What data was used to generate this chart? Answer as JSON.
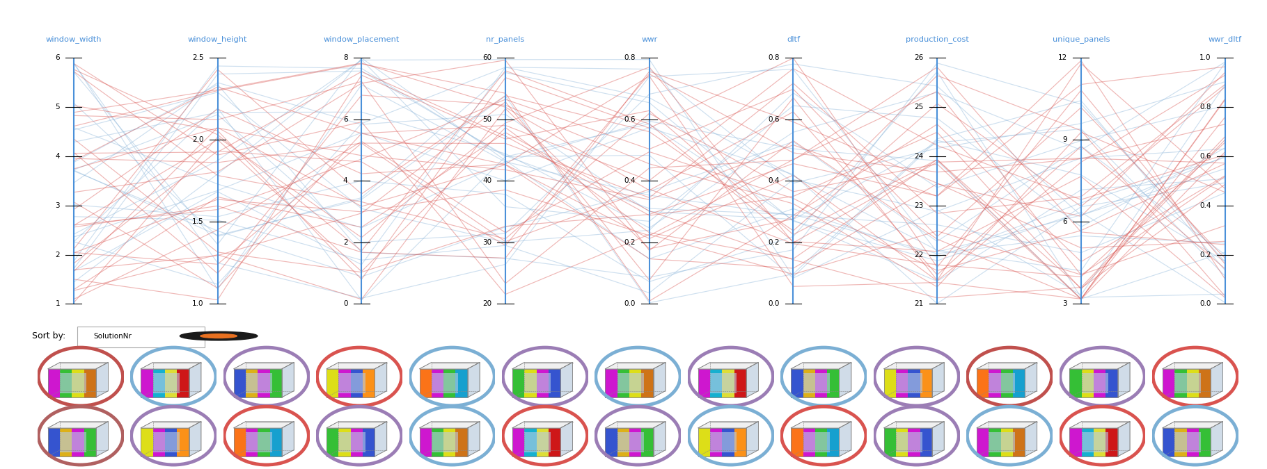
{
  "axes": [
    {
      "name": "window_width",
      "min": 1,
      "max": 6,
      "ticks": [
        1,
        2,
        3,
        4,
        5,
        6
      ]
    },
    {
      "name": "window_height",
      "min": 1.0,
      "max": 2.5,
      "ticks": [
        1.0,
        1.5,
        2.0,
        2.5
      ]
    },
    {
      "name": "window_placement",
      "min": 0,
      "max": 8,
      "ticks": [
        0,
        2,
        4,
        6,
        8
      ]
    },
    {
      "name": "nr_panels",
      "min": 20,
      "max": 60,
      "ticks": [
        20,
        30,
        40,
        50,
        60
      ]
    },
    {
      "name": "wwr",
      "min": 0.0,
      "max": 0.8,
      "ticks": [
        0.0,
        0.2,
        0.4,
        0.6,
        0.8
      ]
    },
    {
      "name": "dltf",
      "min": 0.0,
      "max": 0.8,
      "ticks": [
        0.0,
        0.2,
        0.4,
        0.6,
        0.8
      ]
    },
    {
      "name": "production_cost",
      "min": 21,
      "max": 26,
      "ticks": [
        21,
        22,
        23,
        24,
        25,
        26
      ]
    },
    {
      "name": "unique_panels",
      "min": 3,
      "max": 12,
      "ticks": [
        3,
        6,
        9,
        12
      ]
    },
    {
      "name": "wwr_dltf",
      "min": 0.0,
      "max": 1.0,
      "ticks": [
        0.0,
        0.2,
        0.4,
        0.6,
        0.8,
        1.0
      ]
    }
  ],
  "background_color": "#ffffff",
  "axis_color": "#4a90d9",
  "line_alpha": 0.42,
  "n_red_lines": 30,
  "n_blue_lines": 22,
  "red_color": "#d9534f",
  "blue_color": "#8ab4d9",
  "sort_label": "Sort by:",
  "sort_value": "SolutionNr",
  "circle_colors_row1": [
    "#c0504d",
    "#7bafd4",
    "#9b7db5",
    "#d9534f",
    "#7bafd4",
    "#9b7db5",
    "#7bafd4",
    "#9b7db5",
    "#7bafd4",
    "#9b7db5",
    "#c0504d",
    "#9b7db5",
    "#d9534f"
  ],
  "circle_colors_row2": [
    "#b06060",
    "#9b7db5",
    "#d9534f",
    "#9b7db5",
    "#7bafd4",
    "#d9534f",
    "#9b7db5",
    "#7bafd4",
    "#d9534f",
    "#9b7db5",
    "#7bafd4",
    "#d9534f",
    "#7bafd4"
  ],
  "panel_palettes": [
    [
      "#cc00cc",
      "#22bb22",
      "#dddd00",
      "#cc6600"
    ],
    [
      "#cc00cc",
      "#00aacc",
      "#dddd22",
      "#cc0000"
    ],
    [
      "#2244cc",
      "#ddaa00",
      "#cc00cc",
      "#22bb22"
    ],
    [
      "#dddd00",
      "#cc00cc",
      "#2244cc",
      "#ff8800"
    ],
    [
      "#ff6600",
      "#cc00cc",
      "#22bb22",
      "#0099cc"
    ],
    [
      "#22bb22",
      "#dddd00",
      "#cc00cc",
      "#2244cc"
    ]
  ]
}
